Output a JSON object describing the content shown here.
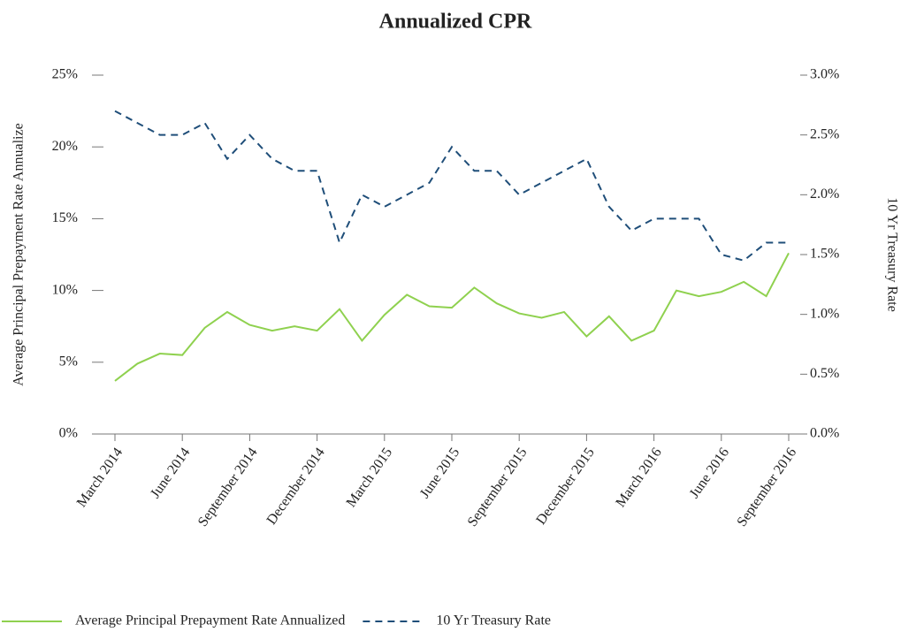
{
  "chart_data": {
    "type": "line",
    "title": "Annualized CPR",
    "ylabel": "Average Principal Prepayment Rate Annualize",
    "y2label": "10 Yr Treasury Rate",
    "categories": [
      "March 2014",
      null,
      null,
      "June 2014",
      null,
      null,
      "September 2014",
      null,
      null,
      "December 2014",
      null,
      null,
      "March 2015",
      null,
      null,
      "June 2015",
      null,
      null,
      "September 2015",
      null,
      null,
      "December 2015",
      null,
      null,
      "March 2016",
      null,
      null,
      "June 2016",
      null,
      null,
      "September 2016"
    ],
    "series": [
      {
        "name": "Average Principal Prepayment Rate Annualized",
        "color": "#8fd14f",
        "dash": false,
        "axis": "y",
        "values": [
          3.7,
          4.9,
          5.6,
          5.5,
          7.4,
          8.5,
          7.6,
          7.2,
          7.5,
          7.2,
          8.7,
          6.5,
          8.3,
          9.7,
          8.9,
          8.8,
          10.2,
          9.1,
          8.4,
          8.1,
          8.5,
          6.8,
          8.2,
          6.5,
          7.2,
          10.0,
          9.6,
          9.9,
          10.6,
          9.6,
          12.6
        ]
      },
      {
        "name": "10 Yr Treasury Rate",
        "color": "#1f4e79",
        "dash": true,
        "axis": "y2",
        "values": [
          2.7,
          2.6,
          2.5,
          2.5,
          2.6,
          2.3,
          2.5,
          2.3,
          2.2,
          2.2,
          1.6,
          2.0,
          1.9,
          2.0,
          2.1,
          2.4,
          2.2,
          2.2,
          2.0,
          2.1,
          2.2,
          2.3,
          1.9,
          1.7,
          1.8,
          1.8,
          1.8,
          1.5,
          1.45,
          1.6,
          1.6
        ]
      }
    ],
    "ylim": [
      0,
      25
    ],
    "yticks": [
      {
        "value": 0,
        "label": "0%"
      },
      {
        "value": 5,
        "label": "5%"
      },
      {
        "value": 10,
        "label": "10%"
      },
      {
        "value": 15,
        "label": "15%"
      },
      {
        "value": 20,
        "label": "20%"
      },
      {
        "value": 25,
        "label": "25%"
      }
    ],
    "y2lim": [
      0,
      3
    ],
    "y2ticks": [
      {
        "value": 0,
        "label": "0.0%"
      },
      {
        "value": 0.5,
        "label": "0.5%"
      },
      {
        "value": 1,
        "label": "1.0%"
      },
      {
        "value": 1.5,
        "label": "1.5%"
      },
      {
        "value": 2,
        "label": "2.0%"
      },
      {
        "value": 2.5,
        "label": "2.5%"
      },
      {
        "value": 3,
        "label": "3.0%"
      }
    ],
    "legend": "bottom"
  }
}
